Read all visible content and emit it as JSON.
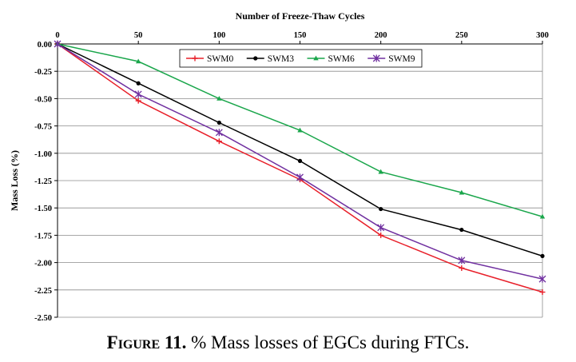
{
  "chart_data": {
    "type": "line",
    "x_axis": {
      "label": "Number of Freeze-Thaw  Cycles",
      "position": "top",
      "min": 0,
      "max": 300,
      "ticks": [
        "0",
        "50",
        "100",
        "150",
        "200",
        "250",
        "300"
      ]
    },
    "y_axis": {
      "label": "Mass Loss (%)",
      "min": -2.5,
      "max": 0,
      "ticks": [
        "0.00",
        "-0.25",
        "-0.50",
        "-0.75",
        "-1.00",
        "-1.25",
        "-1.50",
        "-1.75",
        "-2.00",
        "-2.25",
        "-2.50"
      ]
    },
    "grid": "horizontal",
    "legend": "top-center",
    "x": [
      0,
      50,
      100,
      150,
      200,
      250,
      300
    ],
    "series": [
      {
        "name": "SWM0",
        "color": "#e8202a",
        "marker": "plus",
        "values": [
          0,
          -0.52,
          -0.89,
          -1.24,
          -1.75,
          -2.05,
          -2.27
        ]
      },
      {
        "name": "SWM3",
        "color": "#000000",
        "marker": "circle",
        "values": [
          0,
          -0.36,
          -0.72,
          -1.07,
          -1.51,
          -1.7,
          -1.94
        ]
      },
      {
        "name": "SWM6",
        "color": "#1aa64b",
        "marker": "triangle",
        "values": [
          0,
          -0.16,
          -0.5,
          -0.79,
          -1.17,
          -1.36,
          -1.58
        ]
      },
      {
        "name": "SWM9",
        "color": "#7030a0",
        "marker": "star",
        "values": [
          0,
          -0.46,
          -0.81,
          -1.22,
          -1.68,
          -1.98,
          -2.15
        ]
      }
    ]
  },
  "caption": {
    "label": "Figure 11.",
    "text": " % Mass losses of EGCs during FTCs."
  }
}
